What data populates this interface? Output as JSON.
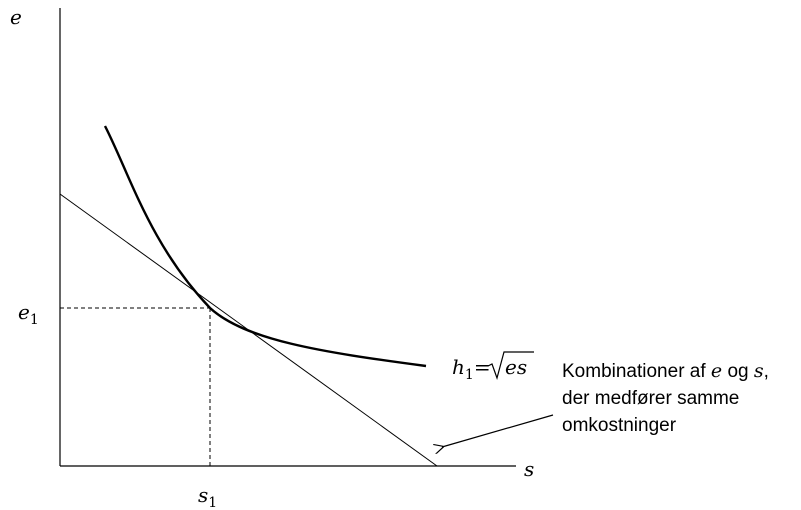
{
  "axes": {
    "y_label": "e",
    "x_label": "s"
  },
  "tick_labels": {
    "e_base": "e",
    "e_sub": "1",
    "s_base": "s",
    "s_sub": "1"
  },
  "curve_label": {
    "h_base": "h",
    "h_sub": "1",
    "equals": "=",
    "radicand": "es"
  },
  "annotation": {
    "line1_prefix": "Kombinationer af ",
    "line1_var1": "e",
    "line1_mid": " og ",
    "line1_var2": "s",
    "line1_suffix": ",",
    "line2": "der medfører samme",
    "line3": "omkostninger"
  },
  "colors": {
    "ink": "#000000",
    "background": "#ffffff"
  }
}
